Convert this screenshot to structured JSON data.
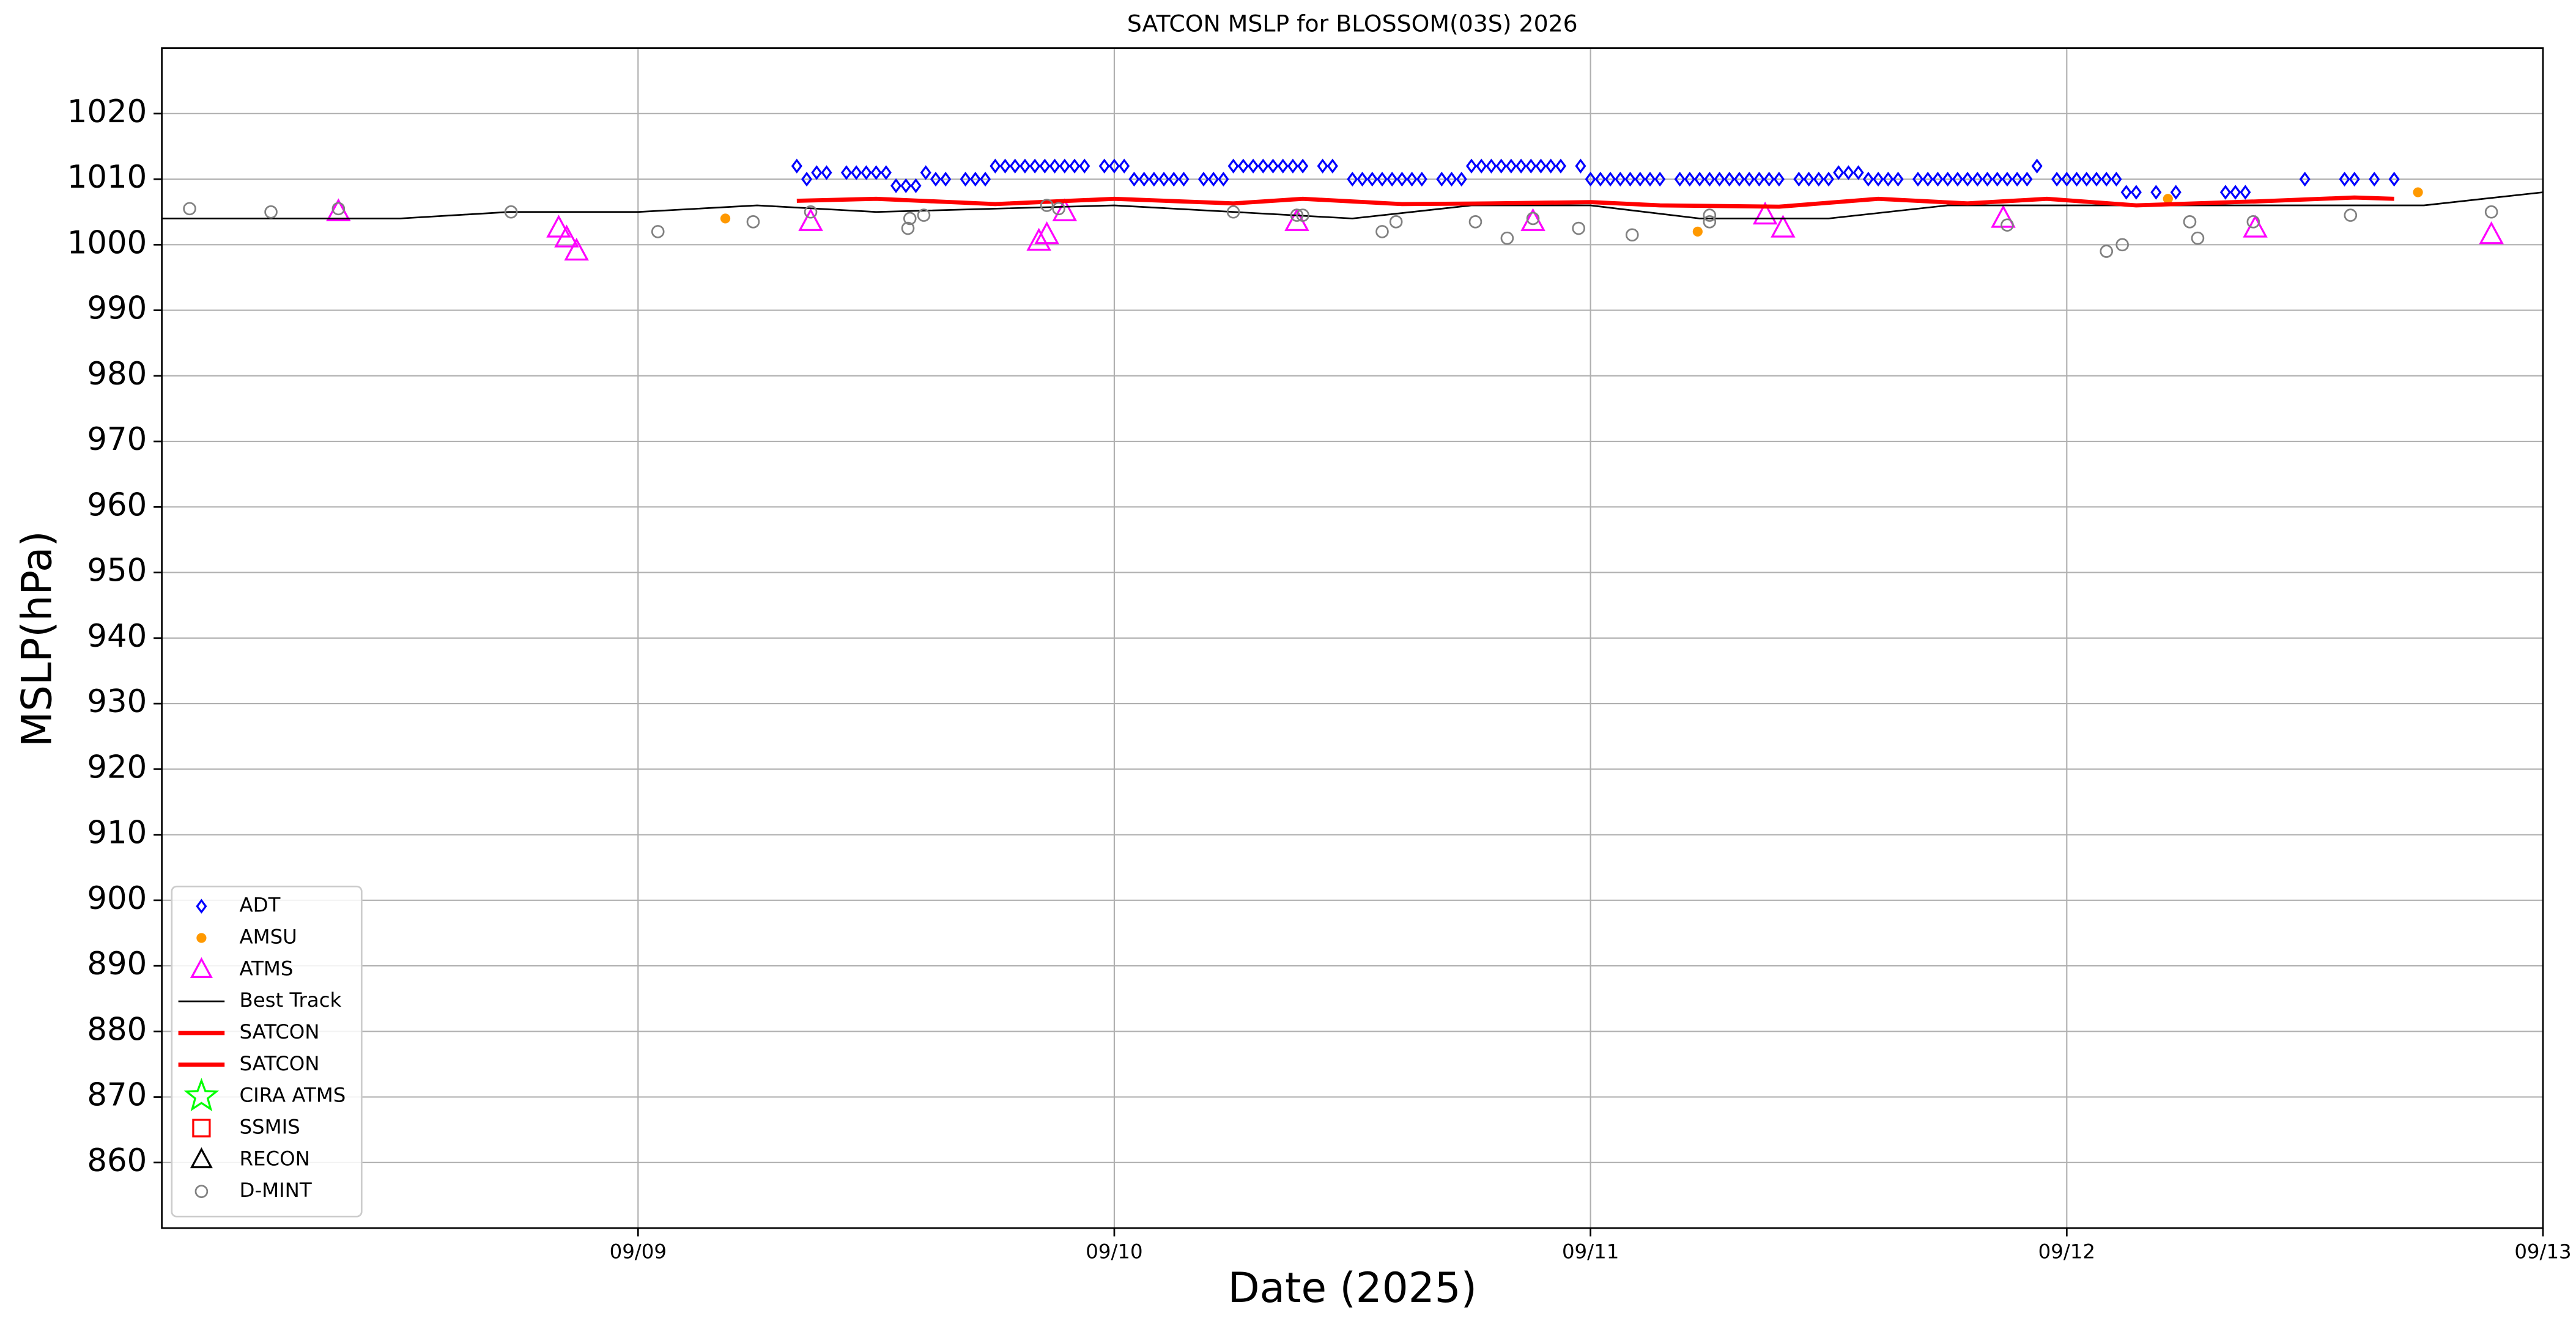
{
  "chart_data": {
    "type": "line",
    "title": "SATCON MSLP for BLOSSOM(03S) 2026",
    "x_label": "Date (2025)",
    "y_label": "MSLP(hPa)",
    "xlim": [
      0,
      120
    ],
    "xticks": [
      {
        "value": 24,
        "label": "09/09"
      },
      {
        "value": 48,
        "label": "09/10"
      },
      {
        "value": 72,
        "label": "09/11"
      },
      {
        "value": 96,
        "label": "09/12"
      },
      {
        "value": 120,
        "label": "09/13"
      }
    ],
    "ylim": [
      850,
      1030
    ],
    "yticks": [
      860,
      870,
      880,
      890,
      900,
      910,
      920,
      930,
      940,
      950,
      960,
      970,
      980,
      990,
      1000,
      1010,
      1020
    ],
    "grid": true,
    "legend": "lower left",
    "series": [
      {
        "name": "ADT",
        "marker": "diamond",
        "color": "#0000ff",
        "x": [
          32,
          32.5,
          33,
          33.5,
          34.5,
          35,
          35.5,
          36,
          36.5,
          37,
          37.5,
          38,
          38.5,
          39,
          39.5,
          40.5,
          41,
          41.5,
          42,
          42.5,
          43,
          43.5,
          44,
          44.5,
          45,
          45.5,
          46,
          46.5,
          47.5,
          48,
          48.5,
          49,
          49.5,
          50,
          50.5,
          51,
          51.5,
          52.5,
          53,
          53.5,
          54,
          54.5,
          55,
          55.5,
          56,
          56.5,
          57,
          57.5,
          58.5,
          59,
          60,
          60.5,
          61,
          61.5,
          62,
          62.5,
          63,
          63.5,
          64.5,
          65,
          65.5,
          66,
          66.5,
          67,
          67.5,
          68,
          68.5,
          69,
          69.5,
          70,
          70.5,
          71.5,
          72,
          72.5,
          73,
          73.5,
          74,
          74.5,
          75,
          75.5,
          76.5,
          77,
          77.5,
          78,
          78.5,
          79,
          79.5,
          80,
          80.5,
          81,
          81.5,
          82.5,
          83,
          83.5,
          84,
          84.5,
          85,
          85.5,
          86,
          86.5,
          87,
          87.5,
          88.5,
          89,
          89.5,
          90,
          90.5,
          91,
          91.5,
          92,
          92.5,
          93,
          93.5,
          94,
          94.5,
          95.5,
          96,
          96.5,
          97,
          97.5,
          98,
          98.5,
          99,
          99.5,
          100.5,
          101.5,
          104,
          104.5,
          105,
          108,
          110,
          110.5,
          111.5,
          112.5
        ],
        "values": [
          1012,
          1010,
          1011,
          1011,
          1011,
          1011,
          1011,
          1011,
          1011,
          1009,
          1009,
          1009,
          1011,
          1010,
          1010,
          1010,
          1010,
          1010,
          1012,
          1012,
          1012,
          1012,
          1012,
          1012,
          1012,
          1012,
          1012,
          1012,
          1012,
          1012,
          1012,
          1010,
          1010,
          1010,
          1010,
          1010,
          1010,
          1010,
          1010,
          1010,
          1012,
          1012,
          1012,
          1012,
          1012,
          1012,
          1012,
          1012,
          1012,
          1012,
          1010,
          1010,
          1010,
          1010,
          1010,
          1010,
          1010,
          1010,
          1010,
          1010,
          1010,
          1012,
          1012,
          1012,
          1012,
          1012,
          1012,
          1012,
          1012,
          1012,
          1012,
          1012,
          1010,
          1010,
          1010,
          1010,
          1010,
          1010,
          1010,
          1010,
          1010,
          1010,
          1010,
          1010,
          1010,
          1010,
          1010,
          1010,
          1010,
          1010,
          1010,
          1010,
          1010,
          1010,
          1010,
          1011,
          1011,
          1011,
          1010,
          1010,
          1010,
          1010,
          1010,
          1010,
          1010,
          1010,
          1010,
          1010,
          1010,
          1010,
          1010,
          1010,
          1010,
          1010,
          1012,
          1010,
          1010,
          1010,
          1010,
          1010,
          1010,
          1010,
          1008,
          1008,
          1008,
          1008,
          1008,
          1008,
          1008,
          1010,
          1010,
          1010,
          1010,
          1010
        ]
      },
      {
        "name": "AMSU",
        "marker": "dot",
        "color": "#ff9900",
        "x": [
          28.4,
          77.4,
          101.1,
          113.7
        ],
        "values": [
          1004,
          1002,
          1007,
          1008
        ]
      },
      {
        "name": "ATMS",
        "marker": "triangle",
        "color": "#ff00ff",
        "x": [
          8.9,
          20,
          20.4,
          20.9,
          32.7,
          44.2,
          44.6,
          45.5,
          57.2,
          69.1,
          80.8,
          81.7,
          92.8,
          105.5,
          117.4
        ],
        "values": [
          1005,
          1002.5,
          1001,
          999,
          1003.5,
          1000.5,
          1001.5,
          1005,
          1003.5,
          1003.5,
          1004.5,
          1002.5,
          1004,
          1002.5,
          1001.5
        ]
      },
      {
        "name": "Best Track",
        "marker": "line",
        "color": "#000000",
        "width": 1,
        "x": [
          0,
          12,
          17.5,
          24,
          30,
          36,
          48,
          60,
          66,
          72,
          77.5,
          84,
          90,
          96,
          114,
          120
        ],
        "values": [
          1004,
          1004,
          1005,
          1005,
          1006,
          1005,
          1006,
          1004,
          1006,
          1006,
          1004,
          1004,
          1006,
          1006,
          1006,
          1008
        ]
      },
      {
        "name": "SATCON",
        "marker": "line",
        "color": "#ff0000",
        "width": 2.5,
        "x": [
          32,
          36,
          42,
          48,
          54,
          57.5,
          62.5,
          67,
          72,
          75.5,
          81.5,
          86.5,
          91,
          95,
          99.5,
          105.5,
          110.5,
          112.5
        ],
        "values": [
          1006.7,
          1007,
          1006.2,
          1007,
          1006.3,
          1007,
          1006.2,
          1006.3,
          1006.5,
          1006,
          1005.8,
          1007,
          1006.3,
          1007,
          1006,
          1006.6,
          1007.2,
          1007
        ]
      },
      {
        "name": "SATCON",
        "marker": "line",
        "color": "#ff0000",
        "width": 2.5,
        "x": [],
        "values": []
      },
      {
        "name": "CIRA ATMS",
        "marker": "star",
        "color": "#00ff00",
        "x": [],
        "values": []
      },
      {
        "name": "SSMIS",
        "marker": "square",
        "color": "#ff0000",
        "x": [],
        "values": []
      },
      {
        "name": "RECON",
        "marker": "triangle",
        "color": "#000000",
        "x": [],
        "values": []
      },
      {
        "name": "D-MINT",
        "marker": "circle",
        "color": "#808080",
        "x": [
          1.4,
          5.5,
          8.9,
          17.6,
          25,
          29.8,
          32.7,
          37.6,
          37.7,
          38.4,
          44.6,
          45.2,
          54,
          57.2,
          57.5,
          61.5,
          62.2,
          66.2,
          67.8,
          69.1,
          71.4,
          74.1,
          78,
          78,
          93,
          98,
          98.8,
          102.2,
          102.6,
          105.4,
          110.3,
          117.4
        ],
        "values": [
          1005.5,
          1005,
          1005.5,
          1005,
          1002,
          1003.5,
          1005,
          1002.5,
          1004,
          1004.5,
          1006,
          1005.5,
          1005,
          1004.5,
          1004.5,
          1002,
          1003.5,
          1003.5,
          1001,
          1004,
          1002.5,
          1001.5,
          1004.5,
          1003.5,
          1003,
          999,
          1000,
          1003.5,
          1001,
          1003.5,
          1004.5,
          1005
        ]
      }
    ]
  }
}
